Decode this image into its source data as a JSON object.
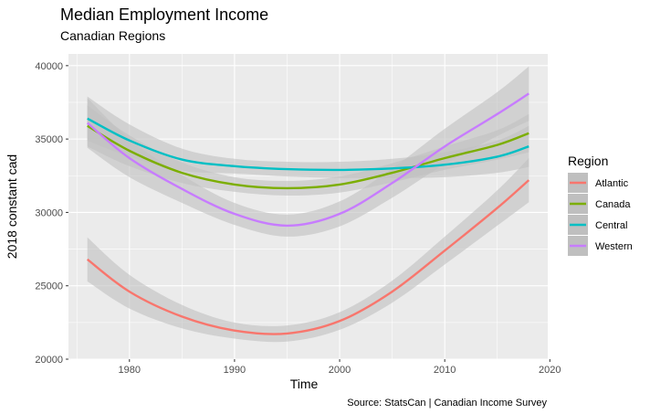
{
  "chart_data": {
    "type": "line",
    "title": "Median Employment Income",
    "subtitle": "Canadian Regions",
    "xlabel": "Time",
    "ylabel": "2018 constant cad",
    "caption": "Source: StatsCan | Canadian Income Survey",
    "xlim": [
      1974.2,
      2019.8
    ],
    "ylim": [
      20000,
      40800
    ],
    "x_ticks": [
      1980,
      1990,
      2000,
      2010,
      2020
    ],
    "y_ticks": [
      20000,
      25000,
      30000,
      35000,
      40000
    ],
    "x_tick_labels": [
      "1980",
      "1990",
      "2000",
      "2010",
      "2020"
    ],
    "y_tick_labels": [
      "20000",
      "25000",
      "30000",
      "35000",
      "40000"
    ],
    "grid": true,
    "legend_title": "Region",
    "legend_position": "right",
    "ribbon_color": "#bfbfbf",
    "series": [
      {
        "name": "Atlantic",
        "color": "#F8766D",
        "points": [
          [
            1976,
            26800
          ],
          [
            1980,
            24600
          ],
          [
            1985,
            22900
          ],
          [
            1990,
            21950
          ],
          [
            1995,
            21750
          ],
          [
            2000,
            22600
          ],
          [
            2005,
            24600
          ],
          [
            2010,
            27400
          ],
          [
            2015,
            30300
          ],
          [
            2018,
            32200
          ]
        ],
        "band": [
          1500,
          1150,
          800,
          550,
          550,
          600,
          750,
          950,
          1200,
          1500
        ]
      },
      {
        "name": "Canada",
        "color": "#7CAE00",
        "points": [
          [
            1976,
            35900
          ],
          [
            1980,
            34200
          ],
          [
            1985,
            32700
          ],
          [
            1990,
            31900
          ],
          [
            1995,
            31650
          ],
          [
            2000,
            31900
          ],
          [
            2005,
            32700
          ],
          [
            2010,
            33700
          ],
          [
            2015,
            34600
          ],
          [
            2018,
            35400
          ]
        ],
        "band": [
          1400,
          1050,
          700,
          500,
          500,
          550,
          650,
          800,
          1000,
          1300
        ]
      },
      {
        "name": "Central",
        "color": "#00BFC4",
        "points": [
          [
            1976,
            36400
          ],
          [
            1980,
            34900
          ],
          [
            1985,
            33600
          ],
          [
            1990,
            33150
          ],
          [
            1995,
            32950
          ],
          [
            2000,
            32900
          ],
          [
            2005,
            33000
          ],
          [
            2010,
            33250
          ],
          [
            2015,
            33800
          ],
          [
            2018,
            34500
          ]
        ],
        "band": [
          1500,
          1100,
          750,
          500,
          500,
          550,
          650,
          850,
          1100,
          1400
        ]
      },
      {
        "name": "Western",
        "color": "#C77CFF",
        "points": [
          [
            1976,
            36100
          ],
          [
            1980,
            33700
          ],
          [
            1985,
            31600
          ],
          [
            1990,
            29900
          ],
          [
            1995,
            29100
          ],
          [
            2000,
            29900
          ],
          [
            2005,
            32000
          ],
          [
            2010,
            34500
          ],
          [
            2015,
            36700
          ],
          [
            2018,
            38100
          ]
        ],
        "band": [
          1700,
          1300,
          950,
          750,
          750,
          850,
          1000,
          1200,
          1500,
          1850
        ]
      }
    ]
  }
}
